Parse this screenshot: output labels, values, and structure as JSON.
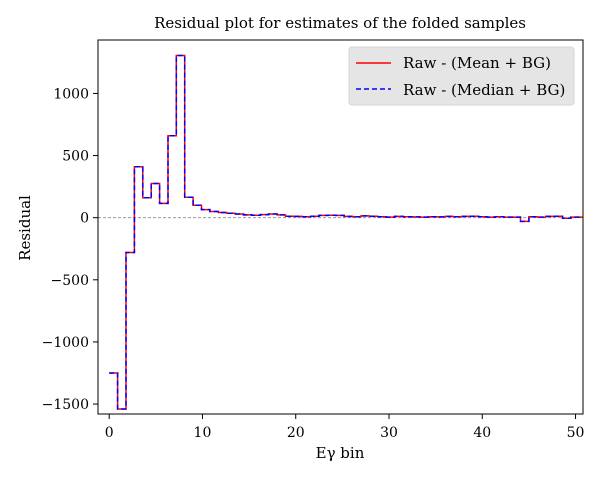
{
  "chart_data": {
    "type": "line",
    "style": "step",
    "title": "Residual plot for estimates of the folded samples",
    "xlabel": "Eγ bin",
    "ylabel": "Residual",
    "xlim": [
      -1.2,
      50.8
    ],
    "ylim": [
      -1580,
      1430
    ],
    "xticks": [
      0,
      10,
      20,
      30,
      40,
      50
    ],
    "yticks": [
      -1500,
      -1000,
      -500,
      0,
      500,
      1000
    ],
    "ytick_labels": [
      "−1500",
      "−1000",
      "−500",
      "0",
      "500",
      "1000"
    ],
    "grid": false,
    "zero_line": true,
    "legend_position": "top-right",
    "x": [
      0.0,
      0.9,
      1.8,
      2.7,
      3.6,
      4.5,
      5.4,
      6.3,
      7.2,
      8.1,
      9.0,
      9.9,
      10.8,
      11.7,
      12.6,
      13.5,
      14.4,
      15.3,
      16.2,
      17.1,
      18.0,
      18.9,
      19.8,
      20.7,
      21.6,
      22.5,
      23.4,
      24.3,
      25.2,
      26.1,
      27.0,
      27.9,
      28.8,
      29.7,
      30.6,
      31.5,
      32.4,
      33.3,
      34.2,
      35.1,
      36.0,
      36.9,
      37.8,
      38.7,
      39.6,
      40.5,
      41.4,
      42.3,
      43.2,
      44.1,
      45.0,
      45.9,
      46.8,
      47.7,
      48.6,
      49.5,
      50.4
    ],
    "series": [
      {
        "name": "Raw - (Mean + BG)",
        "color": "#ff0000",
        "linestyle": "solid",
        "values": [
          -1250,
          -1540,
          -280,
          410,
          160,
          275,
          115,
          660,
          1305,
          165,
          100,
          65,
          50,
          42,
          35,
          30,
          22,
          20,
          25,
          30,
          22,
          12,
          10,
          8,
          12,
          18,
          20,
          18,
          10,
          8,
          14,
          12,
          8,
          5,
          10,
          8,
          6,
          5,
          8,
          6,
          10,
          8,
          10,
          12,
          8,
          5,
          8,
          5,
          5,
          -30,
          8,
          5,
          10,
          12,
          -5,
          5,
          5
        ]
      },
      {
        "name": "Raw - (Median + BG)",
        "color": "#0000ff",
        "linestyle": "dashed",
        "values": [
          -1250,
          -1540,
          -280,
          410,
          160,
          275,
          115,
          660,
          1305,
          165,
          100,
          65,
          50,
          42,
          35,
          30,
          22,
          20,
          25,
          30,
          22,
          12,
          10,
          8,
          12,
          18,
          20,
          18,
          10,
          8,
          14,
          12,
          8,
          5,
          10,
          8,
          6,
          5,
          8,
          6,
          10,
          8,
          10,
          12,
          8,
          5,
          8,
          5,
          5,
          -30,
          8,
          5,
          10,
          12,
          -5,
          5,
          5
        ]
      }
    ]
  }
}
